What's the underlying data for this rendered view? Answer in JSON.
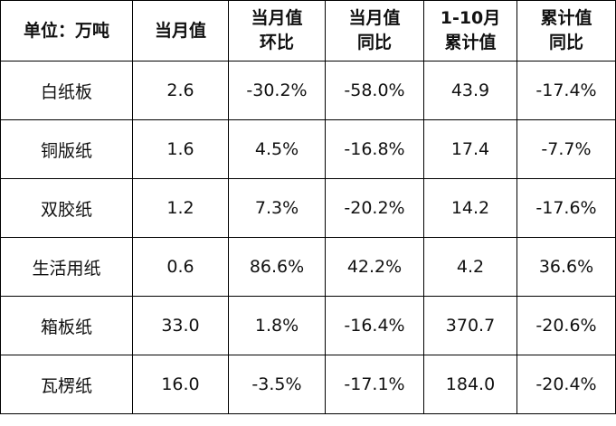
{
  "table": {
    "header": [
      "单位：万吨",
      "当月值",
      "当月值\n环比",
      "当月值\n同比",
      "1-10月\n累计值",
      "累计值\n同比"
    ],
    "rows": [
      [
        "白纸板",
        "2.6",
        "-30.2%",
        "-58.0%",
        "43.9",
        "-17.4%"
      ],
      [
        "铜版纸",
        "1.6",
        "4.5%",
        "-16.8%",
        "17.4",
        "-7.7%"
      ],
      [
        "双胶纸",
        "1.2",
        "7.3%",
        "-20.2%",
        "14.2",
        "-17.6%"
      ],
      [
        "生活用纸",
        "0.6",
        "86.6%",
        "42.2%",
        "4.2",
        "36.6%"
      ],
      [
        "箱板纸",
        "33.0",
        "1.8%",
        "-16.4%",
        "370.7",
        "-20.6%"
      ],
      [
        "瓦楞纸",
        "16.0",
        "-3.5%",
        "-17.1%",
        "184.0",
        "-20.4%"
      ]
    ]
  }
}
